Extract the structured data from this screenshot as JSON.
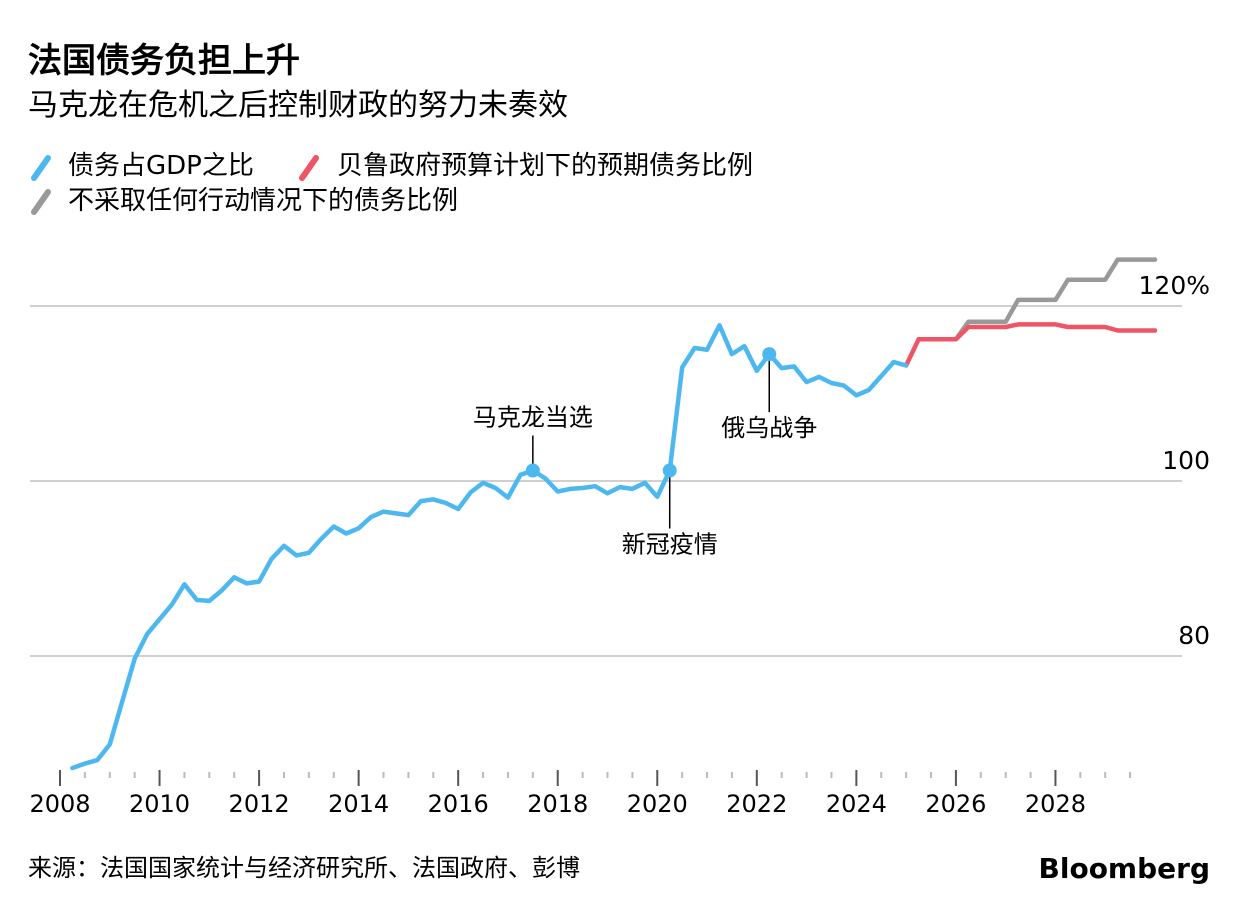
{
  "header": {
    "title": "法国债务负担上升",
    "subtitle": "马克龙在危机之后控制财政的努力未奏效"
  },
  "legend": [
    {
      "label": "债务占GDP之比",
      "color": "#4db8f0"
    },
    {
      "label": "贝鲁政府预算计划下的预期债务比例",
      "color": "#ee5566"
    },
    {
      "label": "不采取任何行动情况下的债务比例",
      "color": "#999999"
    }
  ],
  "footer": {
    "source": "来源：法国国家统计与经济研究所、法国政府、彭博",
    "brand": "Bloomberg"
  },
  "chart_data": {
    "type": "line",
    "xlim": [
      2008,
      2030
    ],
    "ylim": [
      67,
      120
    ],
    "x_ticks": [
      2008,
      2010,
      2012,
      2014,
      2016,
      2018,
      2020,
      2022,
      2024,
      2026,
      2028
    ],
    "y_ticks": [
      {
        "value": 80,
        "label": "80"
      },
      {
        "value": 100,
        "label": "100"
      },
      {
        "value": 120,
        "label": "120%"
      }
    ],
    "grid": true,
    "series": [
      {
        "name": "债务占GDP之比",
        "color": "#4db8f0",
        "points": [
          [
            2008.25,
            67.2
          ],
          [
            2008.5,
            67.7
          ],
          [
            2008.75,
            68.1
          ],
          [
            2009.0,
            69.9
          ],
          [
            2009.25,
            74.8
          ],
          [
            2009.5,
            79.7
          ],
          [
            2009.75,
            82.5
          ],
          [
            2010.0,
            84.2
          ],
          [
            2010.25,
            85.9
          ],
          [
            2010.5,
            88.2
          ],
          [
            2010.75,
            86.4
          ],
          [
            2011.0,
            86.3
          ],
          [
            2011.25,
            87.5
          ],
          [
            2011.5,
            89.0
          ],
          [
            2011.75,
            88.3
          ],
          [
            2012.0,
            88.5
          ],
          [
            2012.25,
            91.1
          ],
          [
            2012.5,
            92.6
          ],
          [
            2012.75,
            91.5
          ],
          [
            2013.0,
            91.8
          ],
          [
            2013.25,
            93.4
          ],
          [
            2013.5,
            94.8
          ],
          [
            2013.75,
            94.0
          ],
          [
            2014.0,
            94.6
          ],
          [
            2014.25,
            95.9
          ],
          [
            2014.5,
            96.5
          ],
          [
            2014.75,
            96.3
          ],
          [
            2015.0,
            96.1
          ],
          [
            2015.25,
            97.7
          ],
          [
            2015.5,
            97.9
          ],
          [
            2015.75,
            97.5
          ],
          [
            2016.0,
            96.8
          ],
          [
            2016.25,
            98.7
          ],
          [
            2016.5,
            99.8
          ],
          [
            2016.75,
            99.2
          ],
          [
            2017.0,
            98.1
          ],
          [
            2017.25,
            100.7
          ],
          [
            2017.5,
            101.2
          ],
          [
            2017.75,
            100.3
          ],
          [
            2018.0,
            98.8
          ],
          [
            2018.25,
            99.1
          ],
          [
            2018.5,
            99.2
          ],
          [
            2018.75,
            99.4
          ],
          [
            2019.0,
            98.6
          ],
          [
            2019.25,
            99.3
          ],
          [
            2019.5,
            99.1
          ],
          [
            2019.75,
            99.8
          ],
          [
            2020.0,
            98.2
          ],
          [
            2020.25,
            101.2
          ],
          [
            2020.5,
            113.0
          ],
          [
            2020.75,
            115.2
          ],
          [
            2021.0,
            115.0
          ],
          [
            2021.25,
            117.8
          ],
          [
            2021.5,
            114.5
          ],
          [
            2021.75,
            115.4
          ],
          [
            2022.0,
            112.6
          ],
          [
            2022.25,
            114.5
          ],
          [
            2022.5,
            112.9
          ],
          [
            2022.75,
            113.1
          ],
          [
            2023.0,
            111.3
          ],
          [
            2023.25,
            111.9
          ],
          [
            2023.5,
            111.2
          ],
          [
            2023.75,
            110.9
          ],
          [
            2024.0,
            109.8
          ],
          [
            2024.25,
            110.4
          ],
          [
            2024.5,
            112.0
          ],
          [
            2024.75,
            113.6
          ],
          [
            2025.0,
            113.2
          ]
        ]
      },
      {
        "name": "贝鲁政府预算计划下的预期债务比例",
        "color": "#ee5566",
        "points": [
          [
            2025.0,
            113.2
          ],
          [
            2025.25,
            116.2
          ],
          [
            2026.0,
            116.2
          ],
          [
            2026.25,
            117.6
          ],
          [
            2027.0,
            117.6
          ],
          [
            2027.25,
            117.9
          ],
          [
            2028.0,
            117.9
          ],
          [
            2028.25,
            117.6
          ],
          [
            2029.0,
            117.6
          ],
          [
            2029.25,
            117.2
          ],
          [
            2030.0,
            117.2
          ]
        ]
      },
      {
        "name": "不采取任何行动情况下的债务比例",
        "color": "#999999",
        "points": [
          [
            2025.25,
            116.2
          ],
          [
            2026.0,
            116.2
          ],
          [
            2026.25,
            118.2
          ],
          [
            2027.0,
            118.2
          ],
          [
            2027.25,
            120.7
          ],
          [
            2028.0,
            120.7
          ],
          [
            2028.25,
            123.0
          ],
          [
            2029.0,
            123.0
          ],
          [
            2029.25,
            125.3
          ],
          [
            2030.0,
            125.3
          ]
        ]
      }
    ],
    "annotations": [
      {
        "label": "马克龙当选",
        "x": 2017.5,
        "y": 101.2,
        "side": "above"
      },
      {
        "label": "新冠疫情",
        "x": 2020.25,
        "y": 101.2,
        "side": "below"
      },
      {
        "label": "俄乌战争",
        "x": 2022.25,
        "y": 114.5,
        "side": "below"
      }
    ]
  }
}
